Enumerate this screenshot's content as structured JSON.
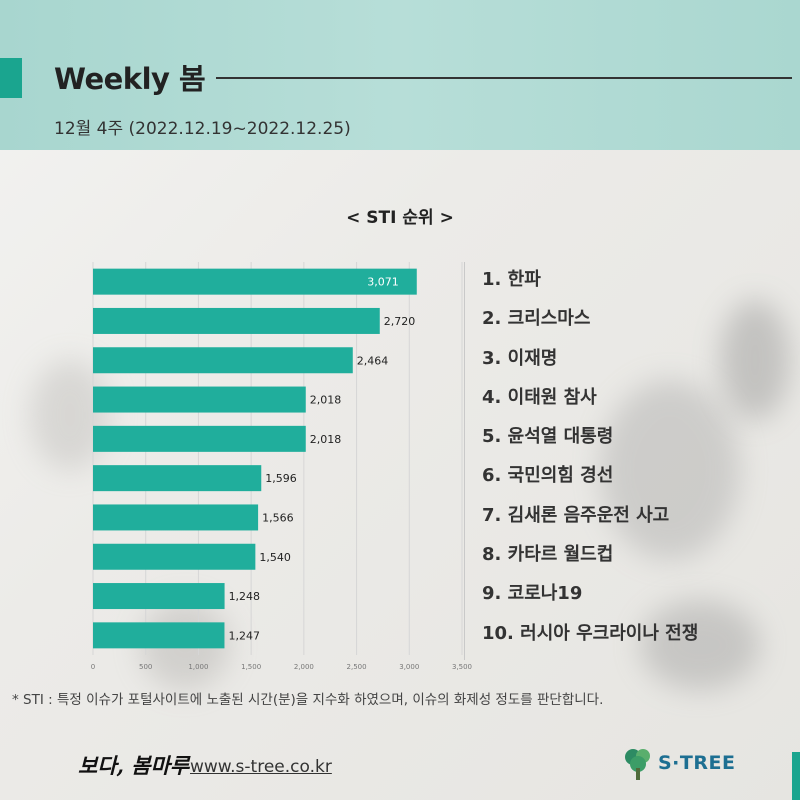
{
  "header": {
    "title": "Weekly 봄",
    "subtitle": "12월 4주 (2022.12.19~2022.12.25)"
  },
  "chart_data": {
    "type": "bar",
    "orientation": "horizontal",
    "title": "< STI 순위 >",
    "categories": [
      "1. 한파",
      "2. 크리스마스",
      "3. 이재명",
      "4. 이태원 참사",
      "5. 윤석열 대통령",
      "6. 국민의힘 경선",
      "7. 김새론 음주운전 사고",
      "8. 카타르 월드컵",
      "9. 코로나19",
      "10. 러시아 우크라이나 전쟁"
    ],
    "values": [
      3071,
      2720,
      2464,
      2018,
      2018,
      1596,
      1566,
      1540,
      1248,
      1247
    ],
    "value_labels": [
      "3,071",
      "2,720",
      "2,464",
      "2,018",
      "2,018",
      "1,596",
      "1,566",
      "1,540",
      "1,248",
      "1,247"
    ],
    "xlim": [
      0,
      3500
    ],
    "x_ticks": [
      0,
      500,
      1000,
      1500,
      2000,
      2500,
      3000,
      3500
    ],
    "x_tick_labels": [
      "0",
      "500",
      "1,000",
      "1,500",
      "2,000",
      "2,500",
      "3,000",
      "3,500"
    ],
    "grid": true,
    "legend": "none",
    "bar_color": "#20ae9c"
  },
  "footnote": "* STI : 특정 이슈가 포털사이트에 노출된 시간(분)을 지수화 하였으며, 이슈의 화제성 정도를 판단합니다.",
  "footer": {
    "brand_script": "보다, 봄마루",
    "url": "www.s-tree.co.kr",
    "logo_text": "S·TREE",
    "logo_icon": "tree-icon"
  },
  "colors": {
    "accent": "#1aa58f",
    "header_bg": "#aed9d2",
    "logo": "#1d6f92"
  }
}
